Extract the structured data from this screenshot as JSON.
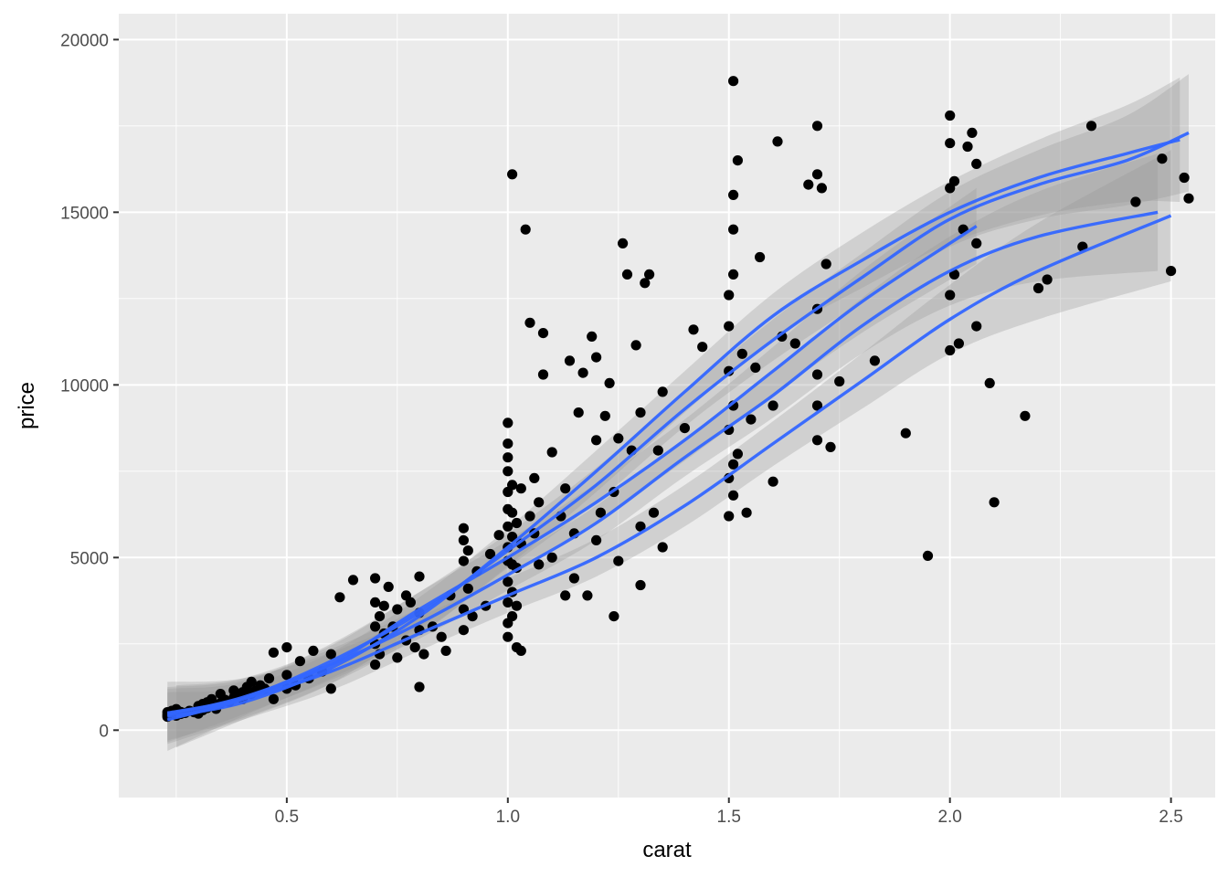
{
  "chart_data": {
    "type": "scatter",
    "title": "",
    "xlabel": "carat",
    "ylabel": "price",
    "xlim": [
      0.12,
      2.6
    ],
    "ylim": [
      -1950,
      20750
    ],
    "x_ticks": [
      {
        "value": 0.5,
        "label": "0.5"
      },
      {
        "value": 1.0,
        "label": "1.0"
      },
      {
        "value": 1.5,
        "label": "1.5"
      },
      {
        "value": 2.0,
        "label": "2.0"
      },
      {
        "value": 2.5,
        "label": "2.5"
      }
    ],
    "y_ticks": [
      {
        "value": 0,
        "label": "0"
      },
      {
        "value": 5000,
        "label": "5000"
      },
      {
        "value": 10000,
        "label": "10000"
      },
      {
        "value": 15000,
        "label": "15000"
      },
      {
        "value": 20000,
        "label": "20000"
      }
    ],
    "grid": true,
    "legend": "none",
    "colors": {
      "panel": "#ebebeb",
      "grid_major": "#ffffff",
      "point": "#000000",
      "smooth_line": "#3366ff",
      "ribbon": "#999999"
    },
    "points": [
      [
        0.23,
        390
      ],
      [
        0.23,
        450
      ],
      [
        0.23,
        520
      ],
      [
        0.24,
        480
      ],
      [
        0.24,
        560
      ],
      [
        0.25,
        420
      ],
      [
        0.25,
        610
      ],
      [
        0.26,
        470
      ],
      [
        0.26,
        530
      ],
      [
        0.27,
        500
      ],
      [
        0.28,
        560
      ],
      [
        0.29,
        520
      ],
      [
        0.3,
        480
      ],
      [
        0.3,
        620
      ],
      [
        0.3,
        700
      ],
      [
        0.31,
        580
      ],
      [
        0.31,
        760
      ],
      [
        0.32,
        640
      ],
      [
        0.32,
        810
      ],
      [
        0.33,
        700
      ],
      [
        0.33,
        900
      ],
      [
        0.34,
        620
      ],
      [
        0.35,
        780
      ],
      [
        0.35,
        1050
      ],
      [
        0.36,
        880
      ],
      [
        0.37,
        820
      ],
      [
        0.38,
        950
      ],
      [
        0.38,
        1150
      ],
      [
        0.39,
        1000
      ],
      [
        0.4,
        900
      ],
      [
        0.4,
        1100
      ],
      [
        0.41,
        1250
      ],
      [
        0.42,
        1050
      ],
      [
        0.42,
        1400
      ],
      [
        0.43,
        1150
      ],
      [
        0.44,
        1300
      ],
      [
        0.45,
        1200
      ],
      [
        0.46,
        1500
      ],
      [
        0.47,
        900
      ],
      [
        0.47,
        2250
      ],
      [
        0.5,
        1200
      ],
      [
        0.5,
        1600
      ],
      [
        0.5,
        2400
      ],
      [
        0.52,
        1300
      ],
      [
        0.53,
        2000
      ],
      [
        0.55,
        1500
      ],
      [
        0.56,
        2300
      ],
      [
        0.58,
        1700
      ],
      [
        0.6,
        2200
      ],
      [
        0.6,
        1200
      ],
      [
        0.62,
        3850
      ],
      [
        0.65,
        4350
      ],
      [
        0.7,
        1900
      ],
      [
        0.7,
        2500
      ],
      [
        0.7,
        3000
      ],
      [
        0.7,
        3700
      ],
      [
        0.7,
        4400
      ],
      [
        0.71,
        2200
      ],
      [
        0.71,
        3300
      ],
      [
        0.72,
        2800
      ],
      [
        0.72,
        3600
      ],
      [
        0.73,
        4150
      ],
      [
        0.74,
        3000
      ],
      [
        0.75,
        2100
      ],
      [
        0.75,
        3500
      ],
      [
        0.77,
        2600
      ],
      [
        0.77,
        3900
      ],
      [
        0.78,
        3700
      ],
      [
        0.79,
        2400
      ],
      [
        0.8,
        1250
      ],
      [
        0.8,
        2900
      ],
      [
        0.8,
        3400
      ],
      [
        0.8,
        4450
      ],
      [
        0.81,
        2200
      ],
      [
        0.83,
        3000
      ],
      [
        0.85,
        2700
      ],
      [
        0.86,
        2300
      ],
      [
        0.87,
        3900
      ],
      [
        0.9,
        2900
      ],
      [
        0.9,
        3500
      ],
      [
        0.9,
        4900
      ],
      [
        0.9,
        5500
      ],
      [
        0.9,
        5850
      ],
      [
        0.91,
        4100
      ],
      [
        0.91,
        5200
      ],
      [
        0.92,
        3300
      ],
      [
        0.93,
        4600
      ],
      [
        0.95,
        3600
      ],
      [
        0.96,
        5100
      ],
      [
        0.98,
        5650
      ],
      [
        1.0,
        2700
      ],
      [
        1.0,
        3100
      ],
      [
        1.0,
        3700
      ],
      [
        1.0,
        4300
      ],
      [
        1.0,
        4900
      ],
      [
        1.0,
        5300
      ],
      [
        1.0,
        5900
      ],
      [
        1.0,
        6400
      ],
      [
        1.0,
        6900
      ],
      [
        1.0,
        7500
      ],
      [
        1.0,
        7900
      ],
      [
        1.0,
        8300
      ],
      [
        1.0,
        8900
      ],
      [
        1.01,
        3300
      ],
      [
        1.01,
        4000
      ],
      [
        1.01,
        4800
      ],
      [
        1.01,
        5600
      ],
      [
        1.01,
        6300
      ],
      [
        1.01,
        7100
      ],
      [
        1.01,
        16100
      ],
      [
        1.02,
        2400
      ],
      [
        1.02,
        3600
      ],
      [
        1.02,
        4700
      ],
      [
        1.02,
        6000
      ],
      [
        1.03,
        2300
      ],
      [
        1.03,
        5400
      ],
      [
        1.03,
        7000
      ],
      [
        1.04,
        14500
      ],
      [
        1.05,
        6200
      ],
      [
        1.05,
        11800
      ],
      [
        1.06,
        5700
      ],
      [
        1.06,
        7300
      ],
      [
        1.07,
        4800
      ],
      [
        1.07,
        6600
      ],
      [
        1.08,
        11500
      ],
      [
        1.08,
        10300
      ],
      [
        1.1,
        5000
      ],
      [
        1.1,
        8050
      ],
      [
        1.12,
        6200
      ],
      [
        1.13,
        3900
      ],
      [
        1.13,
        7000
      ],
      [
        1.14,
        10700
      ],
      [
        1.15,
        4400
      ],
      [
        1.15,
        5700
      ],
      [
        1.16,
        9200
      ],
      [
        1.17,
        10350
      ],
      [
        1.18,
        3900
      ],
      [
        1.19,
        11400
      ],
      [
        1.2,
        5500
      ],
      [
        1.2,
        8400
      ],
      [
        1.2,
        10800
      ],
      [
        1.21,
        6300
      ],
      [
        1.22,
        9100
      ],
      [
        1.23,
        10050
      ],
      [
        1.24,
        3300
      ],
      [
        1.24,
        6900
      ],
      [
        1.25,
        4900
      ],
      [
        1.25,
        8450
      ],
      [
        1.26,
        14100
      ],
      [
        1.27,
        13200
      ],
      [
        1.28,
        8100
      ],
      [
        1.29,
        11150
      ],
      [
        1.3,
        4200
      ],
      [
        1.3,
        5900
      ],
      [
        1.3,
        9200
      ],
      [
        1.31,
        12950
      ],
      [
        1.32,
        13200
      ],
      [
        1.33,
        6300
      ],
      [
        1.34,
        8100
      ],
      [
        1.35,
        5300
      ],
      [
        1.35,
        9800
      ],
      [
        1.4,
        8750
      ],
      [
        1.42,
        11600
      ],
      [
        1.44,
        11100
      ],
      [
        1.5,
        6200
      ],
      [
        1.5,
        7300
      ],
      [
        1.5,
        8700
      ],
      [
        1.5,
        10400
      ],
      [
        1.5,
        11700
      ],
      [
        1.5,
        12600
      ],
      [
        1.51,
        6800
      ],
      [
        1.51,
        7700
      ],
      [
        1.51,
        9400
      ],
      [
        1.51,
        13200
      ],
      [
        1.51,
        14500
      ],
      [
        1.51,
        15500
      ],
      [
        1.51,
        18800
      ],
      [
        1.52,
        8000
      ],
      [
        1.52,
        16500
      ],
      [
        1.53,
        10900
      ],
      [
        1.54,
        6300
      ],
      [
        1.55,
        9000
      ],
      [
        1.56,
        10500
      ],
      [
        1.57,
        13700
      ],
      [
        1.6,
        7200
      ],
      [
        1.6,
        9400
      ],
      [
        1.61,
        17050
      ],
      [
        1.62,
        11400
      ],
      [
        1.65,
        11200
      ],
      [
        1.68,
        15800
      ],
      [
        1.7,
        8400
      ],
      [
        1.7,
        9400
      ],
      [
        1.7,
        10300
      ],
      [
        1.7,
        12200
      ],
      [
        1.7,
        16100
      ],
      [
        1.7,
        17500
      ],
      [
        1.71,
        15700
      ],
      [
        1.72,
        13500
      ],
      [
        1.73,
        8200
      ],
      [
        1.75,
        10100
      ],
      [
        1.83,
        10700
      ],
      [
        1.9,
        8600
      ],
      [
        1.95,
        5050
      ],
      [
        2.0,
        11000
      ],
      [
        2.0,
        12600
      ],
      [
        2.0,
        15700
      ],
      [
        2.0,
        17000
      ],
      [
        2.0,
        17800
      ],
      [
        2.01,
        13200
      ],
      [
        2.01,
        15900
      ],
      [
        2.02,
        11200
      ],
      [
        2.03,
        14500
      ],
      [
        2.04,
        16900
      ],
      [
        2.05,
        17300
      ],
      [
        2.06,
        11700
      ],
      [
        2.06,
        14100
      ],
      [
        2.06,
        16400
      ],
      [
        2.09,
        10050
      ],
      [
        2.1,
        6600
      ],
      [
        2.17,
        9100
      ],
      [
        2.2,
        12800
      ],
      [
        2.22,
        13050
      ],
      [
        2.3,
        14000
      ],
      [
        2.32,
        17500
      ],
      [
        2.42,
        15300
      ],
      [
        2.48,
        16550
      ],
      [
        2.5,
        13300
      ],
      [
        2.53,
        16000
      ],
      [
        2.54,
        15400
      ]
    ],
    "smooth_series": [
      {
        "x": [
          0.23,
          0.4,
          0.6,
          0.8,
          1.0,
          1.2,
          1.4,
          1.6,
          1.8,
          2.0,
          2.2,
          2.4,
          2.54
        ],
        "y": [
          300,
          900,
          2000,
          3400,
          5200,
          7100,
          9300,
          11300,
          13100,
          14800,
          15800,
          16500,
          17300
        ],
        "se": [
          900,
          500,
          500,
          600,
          500,
          500,
          500,
          600,
          700,
          800,
          1000,
          1300,
          1700
        ]
      },
      {
        "x": [
          0.23,
          0.4,
          0.6,
          0.8,
          1.0,
          1.2,
          1.4,
          1.6,
          1.8,
          2.0,
          2.2,
          2.4,
          2.52
        ],
        "y": [
          400,
          800,
          1800,
          3300,
          5300,
          7500,
          9800,
          12000,
          13600,
          15000,
          16000,
          16700,
          17100
        ],
        "se": [
          700,
          450,
          450,
          550,
          550,
          600,
          600,
          650,
          800,
          900,
          1100,
          1400,
          1800
        ]
      },
      {
        "x": [
          0.25,
          0.4,
          0.6,
          0.8,
          1.0,
          1.2,
          1.4,
          1.6,
          1.8,
          2.06
        ],
        "y": [
          400,
          900,
          1900,
          3500,
          5000,
          6600,
          8400,
          10400,
          12400,
          14600
        ],
        "se": [
          900,
          600,
          550,
          500,
          500,
          550,
          600,
          700,
          900,
          1100
        ]
      },
      {
        "x": [
          0.23,
          0.4,
          0.6,
          0.8,
          1.0,
          1.2,
          1.4,
          1.6,
          1.8,
          2.0,
          2.2,
          2.47
        ],
        "y": [
          450,
          950,
          1900,
          3100,
          4500,
          6000,
          7900,
          9700,
          11700,
          13300,
          14300,
          15000
        ],
        "se": [
          800,
          500,
          450,
          450,
          450,
          500,
          550,
          650,
          800,
          1000,
          1300,
          1700
        ]
      },
      {
        "x": [
          0.23,
          0.4,
          0.6,
          0.8,
          1.0,
          1.2,
          1.4,
          1.6,
          1.8,
          2.0,
          2.2,
          2.5
        ],
        "y": [
          500,
          900,
          1700,
          2800,
          3900,
          5000,
          6500,
          8300,
          10100,
          11900,
          13300,
          14900
        ],
        "se": [
          900,
          600,
          550,
          500,
          500,
          550,
          600,
          650,
          800,
          1000,
          1400,
          1900
        ]
      }
    ]
  }
}
